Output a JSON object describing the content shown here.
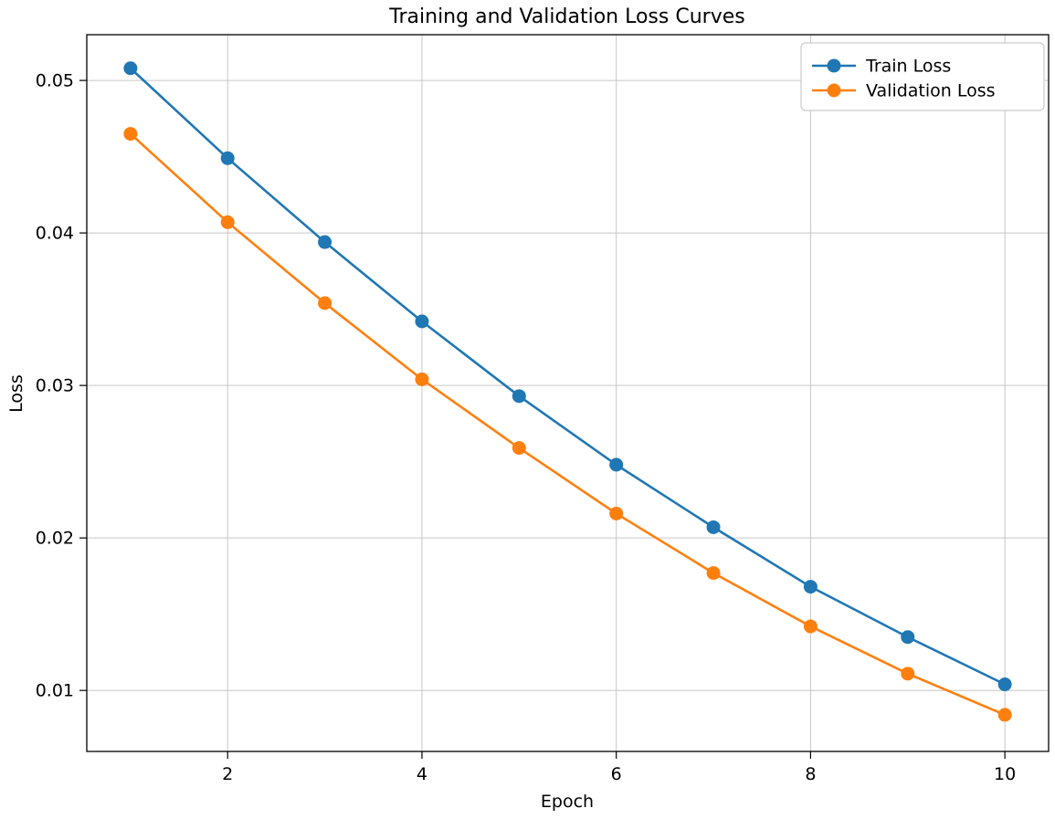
{
  "chart_data": {
    "type": "line",
    "title": "Training and Validation Loss Curves",
    "xlabel": "Epoch",
    "ylabel": "Loss",
    "x": [
      1,
      2,
      3,
      4,
      5,
      6,
      7,
      8,
      9,
      10
    ],
    "series": [
      {
        "name": "Train Loss",
        "color": "#1f77b4",
        "marker": "circle",
        "values": [
          0.0508,
          0.0449,
          0.0394,
          0.0342,
          0.0293,
          0.0248,
          0.0207,
          0.0168,
          0.0135,
          0.0104
        ]
      },
      {
        "name": "Validation Loss",
        "color": "#ff7f0e",
        "marker": "circle",
        "values": [
          0.0465,
          0.0407,
          0.0354,
          0.0304,
          0.0259,
          0.0216,
          0.0177,
          0.0142,
          0.0111,
          0.0084
        ]
      }
    ],
    "xlim": [
      0.55,
      10.45
    ],
    "ylim": [
      0.006,
      0.053
    ],
    "xticks": [
      2,
      4,
      6,
      8,
      10
    ],
    "yticks": [
      0.01,
      0.02,
      0.03,
      0.04,
      0.05
    ],
    "grid": true,
    "grid_color": "#c6c6c6",
    "legend_position": "upper right",
    "background_color": "#ffffff",
    "axis_color": "#000000"
  }
}
